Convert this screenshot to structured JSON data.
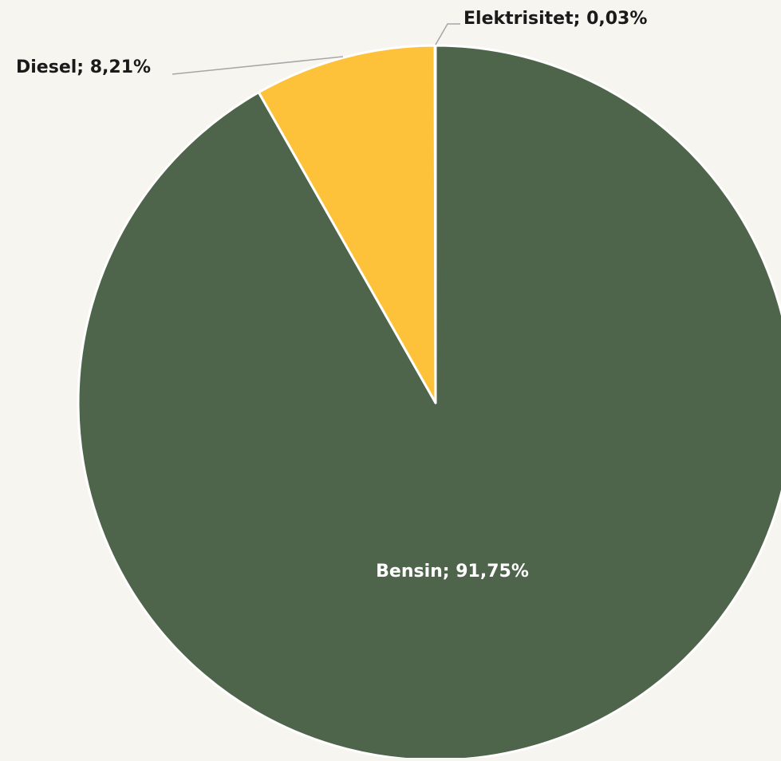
{
  "chart_data": {
    "type": "pie",
    "title": "",
    "categories": [
      "Bensin",
      "Diesel",
      "Elektrisitet"
    ],
    "values": [
      91.75,
      8.21,
      0.03
    ],
    "labels": [
      "Bensin; 91,75%",
      "Diesel; 8,21%",
      "Elektrisitet; 0,03%"
    ],
    "colors": [
      "#4f654b",
      "#fec23a",
      "#a8a8a8"
    ],
    "start_angle_deg": 0,
    "direction": "clockwise",
    "slice_border_color": "#ffffff",
    "label_color_inside": "#ffffff",
    "label_color_outside": "#1a1a1a",
    "leader_line_color": "#a6a6a6",
    "background": "#f7f5ef",
    "legend": "none"
  }
}
